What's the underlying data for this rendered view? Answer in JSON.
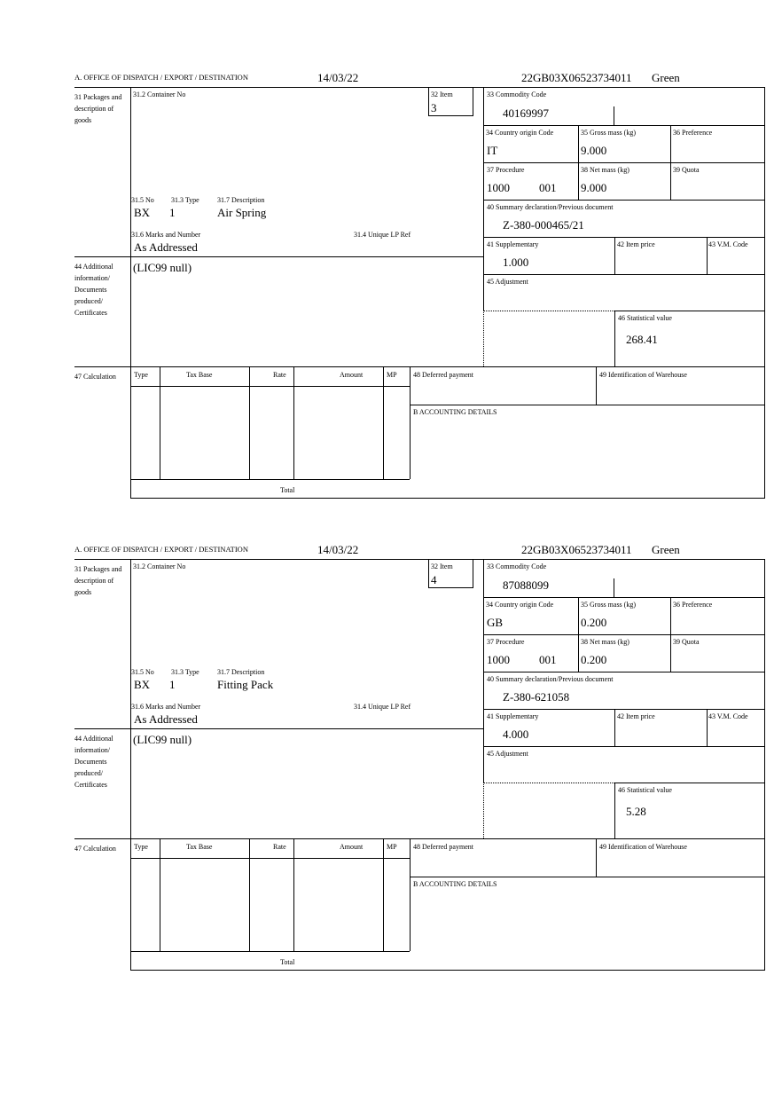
{
  "labels": {
    "office": "A. OFFICE OF DISPATCH / EXPORT / DESTINATION",
    "packages": "31 Packages and description of goods",
    "container": "31.2 Container No",
    "item": "32 Item",
    "commodity": "33 Commodity Code",
    "country": "34 Country origin Code",
    "gross": "35 Gross mass (kg)",
    "preference": "36 Preference",
    "procedure": "37 Procedure",
    "net": "38 Net mass (kg)",
    "quota": "39 Quota",
    "summary": "40 Summary declaration/Previous document",
    "no": "31.5 No",
    "type": "31.3 Type",
    "description": "31.7 Description",
    "marks": "31.6 Marks and Number",
    "unique": "31.4 Unique LP Ref",
    "supplementary": "41 Supplementary",
    "item_price": "42 Item price",
    "vm_code": "43 V.M. Code",
    "adjustment": "45 Adjustment",
    "statistical": "46 Statistical value",
    "additional": "44 Additional information/ Documents produced/ Certificates",
    "calculation": "47 Calculation",
    "calc_type": "Type",
    "tax_base": "Tax Base",
    "rate": "Rate",
    "amount": "Amount",
    "mp": "MP",
    "deferred": "48 Deferred payment",
    "warehouse": "49 Identification of Warehouse",
    "accounting": "B ACCOUNTING DETAILS",
    "total": "Total"
  },
  "forms": [
    {
      "date": "14/03/22",
      "reference": "22GB03X06523734011",
      "route": "Green",
      "item": "3",
      "commodity_code": "40169997",
      "country": "IT",
      "gross_mass": "9.000",
      "procedure": "1000",
      "procedure_add": "001",
      "net_mass": "9.000",
      "summary_doc": "Z-380-000465/21",
      "pkg_no": "BX",
      "pkg_type": "1",
      "description": "Air Spring",
      "marks": "As Addressed",
      "supplementary": "1.000",
      "statistical_value": "268.41",
      "additional_info": "(LIC99 null)"
    },
    {
      "date": "14/03/22",
      "reference": "22GB03X06523734011",
      "route": "Green",
      "item": "4",
      "commodity_code": "87088099",
      "country": "GB",
      "gross_mass": "0.200",
      "procedure": "1000",
      "procedure_add": "001",
      "net_mass": "0.200",
      "summary_doc": "Z-380-621058",
      "pkg_no": "BX",
      "pkg_type": "1",
      "description": "Fitting Pack",
      "marks": "As Addressed",
      "supplementary": "4.000",
      "statistical_value": "5.28",
      "additional_info": "(LIC99 null)"
    }
  ]
}
